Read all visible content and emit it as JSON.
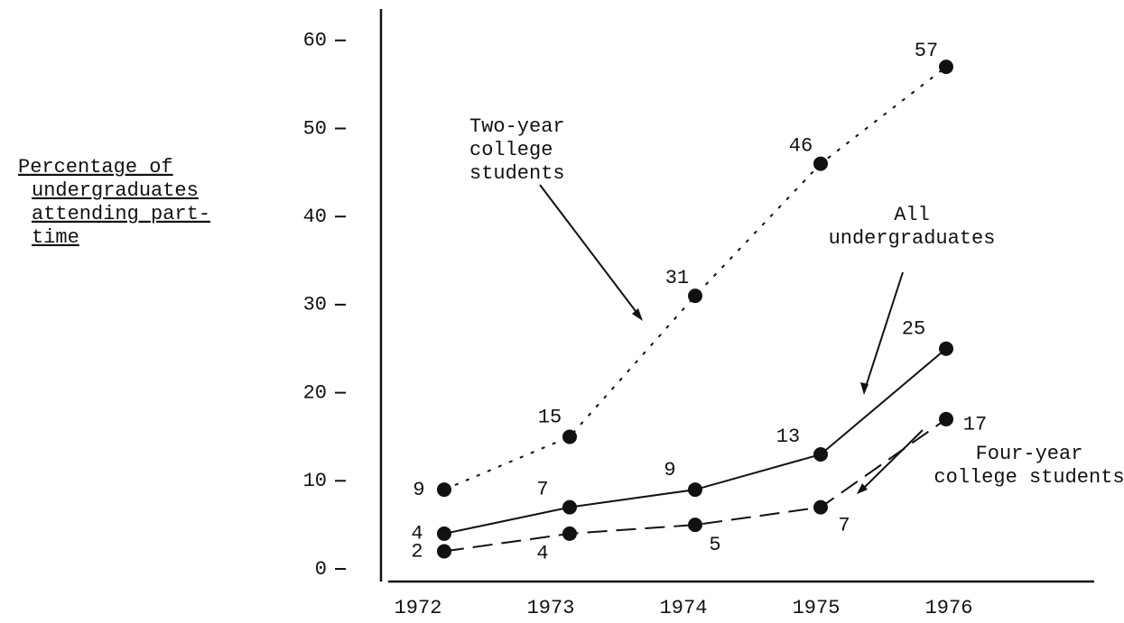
{
  "chart_data": {
    "type": "line",
    "ylabel": [
      "Percentage of",
      "undergraduates",
      "attending part-",
      "time"
    ],
    "categories": [
      "1972",
      "1973",
      "1974",
      "1975",
      "1976"
    ],
    "ylim": [
      0,
      64
    ],
    "yticks": [
      0,
      10,
      20,
      30,
      40,
      50,
      60
    ],
    "series": [
      {
        "color": "#111",
        "style": "dotted",
        "values": [
          9,
          15,
          31,
          46,
          57
        ]
      },
      {
        "color": "#111",
        "style": "solid",
        "values": [
          4,
          7,
          9,
          13,
          25
        ]
      },
      {
        "color": "#111",
        "style": "dashed",
        "values": [
          2,
          4,
          5,
          7,
          17
        ]
      }
    ],
    "annotations": [
      {
        "lines": [
          "Two-year",
          "college",
          "students"
        ]
      },
      {
        "lines": [
          "All",
          "undergraduates"
        ]
      },
      {
        "lines": [
          "Four-year",
          "college students"
        ]
      }
    ]
  }
}
